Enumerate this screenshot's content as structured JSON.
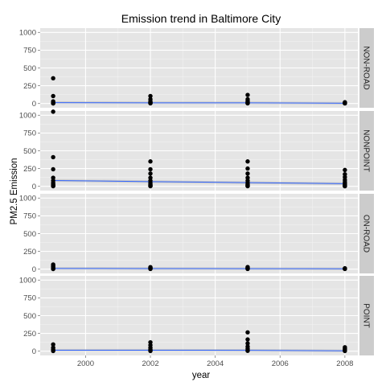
{
  "chart_data": {
    "type": "scatter",
    "title": "Emission trend in Baltimore City",
    "xlabel": "year",
    "ylabel": "PM2.5 Emission",
    "xlim": [
      1998.6,
      2008.4
    ],
    "ylim": [
      -60,
      1060
    ],
    "x_ticks": [
      2000,
      2002,
      2004,
      2006,
      2008
    ],
    "y_ticks": [
      0,
      250,
      500,
      750,
      1000
    ],
    "grid": true,
    "smooth_color": "#3366ff",
    "point_color": "#000000",
    "panel_bg": "#e5e5e5",
    "strip_bg": "#cccccc",
    "facets": [
      {
        "name": "NON-ROAD",
        "points": [
          {
            "x": 1999,
            "y": [
              355,
              105,
              30,
              12,
              5,
              2,
              1
            ]
          },
          {
            "x": 2002,
            "y": [
              105,
              60,
              30,
              18,
              10,
              5,
              2
            ]
          },
          {
            "x": 2005,
            "y": [
              120,
              60,
              35,
              20,
              10,
              5,
              2
            ]
          },
          {
            "x": 2008,
            "y": [
              18,
              12,
              8,
              5,
              3,
              1
            ]
          }
        ],
        "smooth": [
          {
            "x": 1999,
            "y": 12
          },
          {
            "x": 2002,
            "y": 10
          },
          {
            "x": 2005,
            "y": 9
          },
          {
            "x": 2008,
            "y": 4
          }
        ]
      },
      {
        "name": "NONPOINT",
        "points": [
          {
            "x": 1999,
            "y": [
              1050,
              410,
              240,
              120,
              80,
              50,
              30,
              20,
              10,
              5,
              2
            ]
          },
          {
            "x": 2002,
            "y": [
              350,
              240,
              180,
              120,
              80,
              50,
              30,
              20,
              10,
              5,
              2
            ]
          },
          {
            "x": 2005,
            "y": [
              350,
              250,
              180,
              120,
              80,
              50,
              30,
              20,
              10,
              5,
              2
            ]
          },
          {
            "x": 2008,
            "y": [
              230,
              170,
              130,
              90,
              60,
              40,
              25,
              15,
              8,
              3,
              1
            ]
          }
        ],
        "smooth": [
          {
            "x": 1999,
            "y": 82
          },
          {
            "x": 2002,
            "y": 66
          },
          {
            "x": 2005,
            "y": 52
          },
          {
            "x": 2008,
            "y": 38
          }
        ]
      },
      {
        "name": "ON-ROAD",
        "points": [
          {
            "x": 1999,
            "y": [
              65,
              50,
              35,
              20,
              10,
              5,
              2
            ]
          },
          {
            "x": 2002,
            "y": [
              28,
              20,
              12,
              6,
              3
            ]
          },
          {
            "x": 2005,
            "y": [
              30,
              20,
              12,
              6,
              3
            ]
          },
          {
            "x": 2008,
            "y": [
              12,
              8,
              5,
              3
            ]
          }
        ],
        "smooth": [
          {
            "x": 1999,
            "y": 10
          },
          {
            "x": 2002,
            "y": 8
          },
          {
            "x": 2005,
            "y": 7
          },
          {
            "x": 2008,
            "y": 5
          }
        ]
      },
      {
        "name": "POINT",
        "points": [
          {
            "x": 1999,
            "y": [
              95,
              50,
              25,
              10,
              3
            ]
          },
          {
            "x": 2002,
            "y": [
              125,
              85,
              50,
              25,
              10,
              3
            ]
          },
          {
            "x": 2005,
            "y": [
              265,
              165,
              110,
              65,
              35,
              15,
              5
            ]
          },
          {
            "x": 2008,
            "y": [
              55,
              35,
              20,
              10,
              3
            ]
          }
        ],
        "smooth": [
          {
            "x": 1999,
            "y": 14
          },
          {
            "x": 2002,
            "y": 14
          },
          {
            "x": 2005,
            "y": 12
          },
          {
            "x": 2008,
            "y": 5
          }
        ]
      }
    ]
  }
}
